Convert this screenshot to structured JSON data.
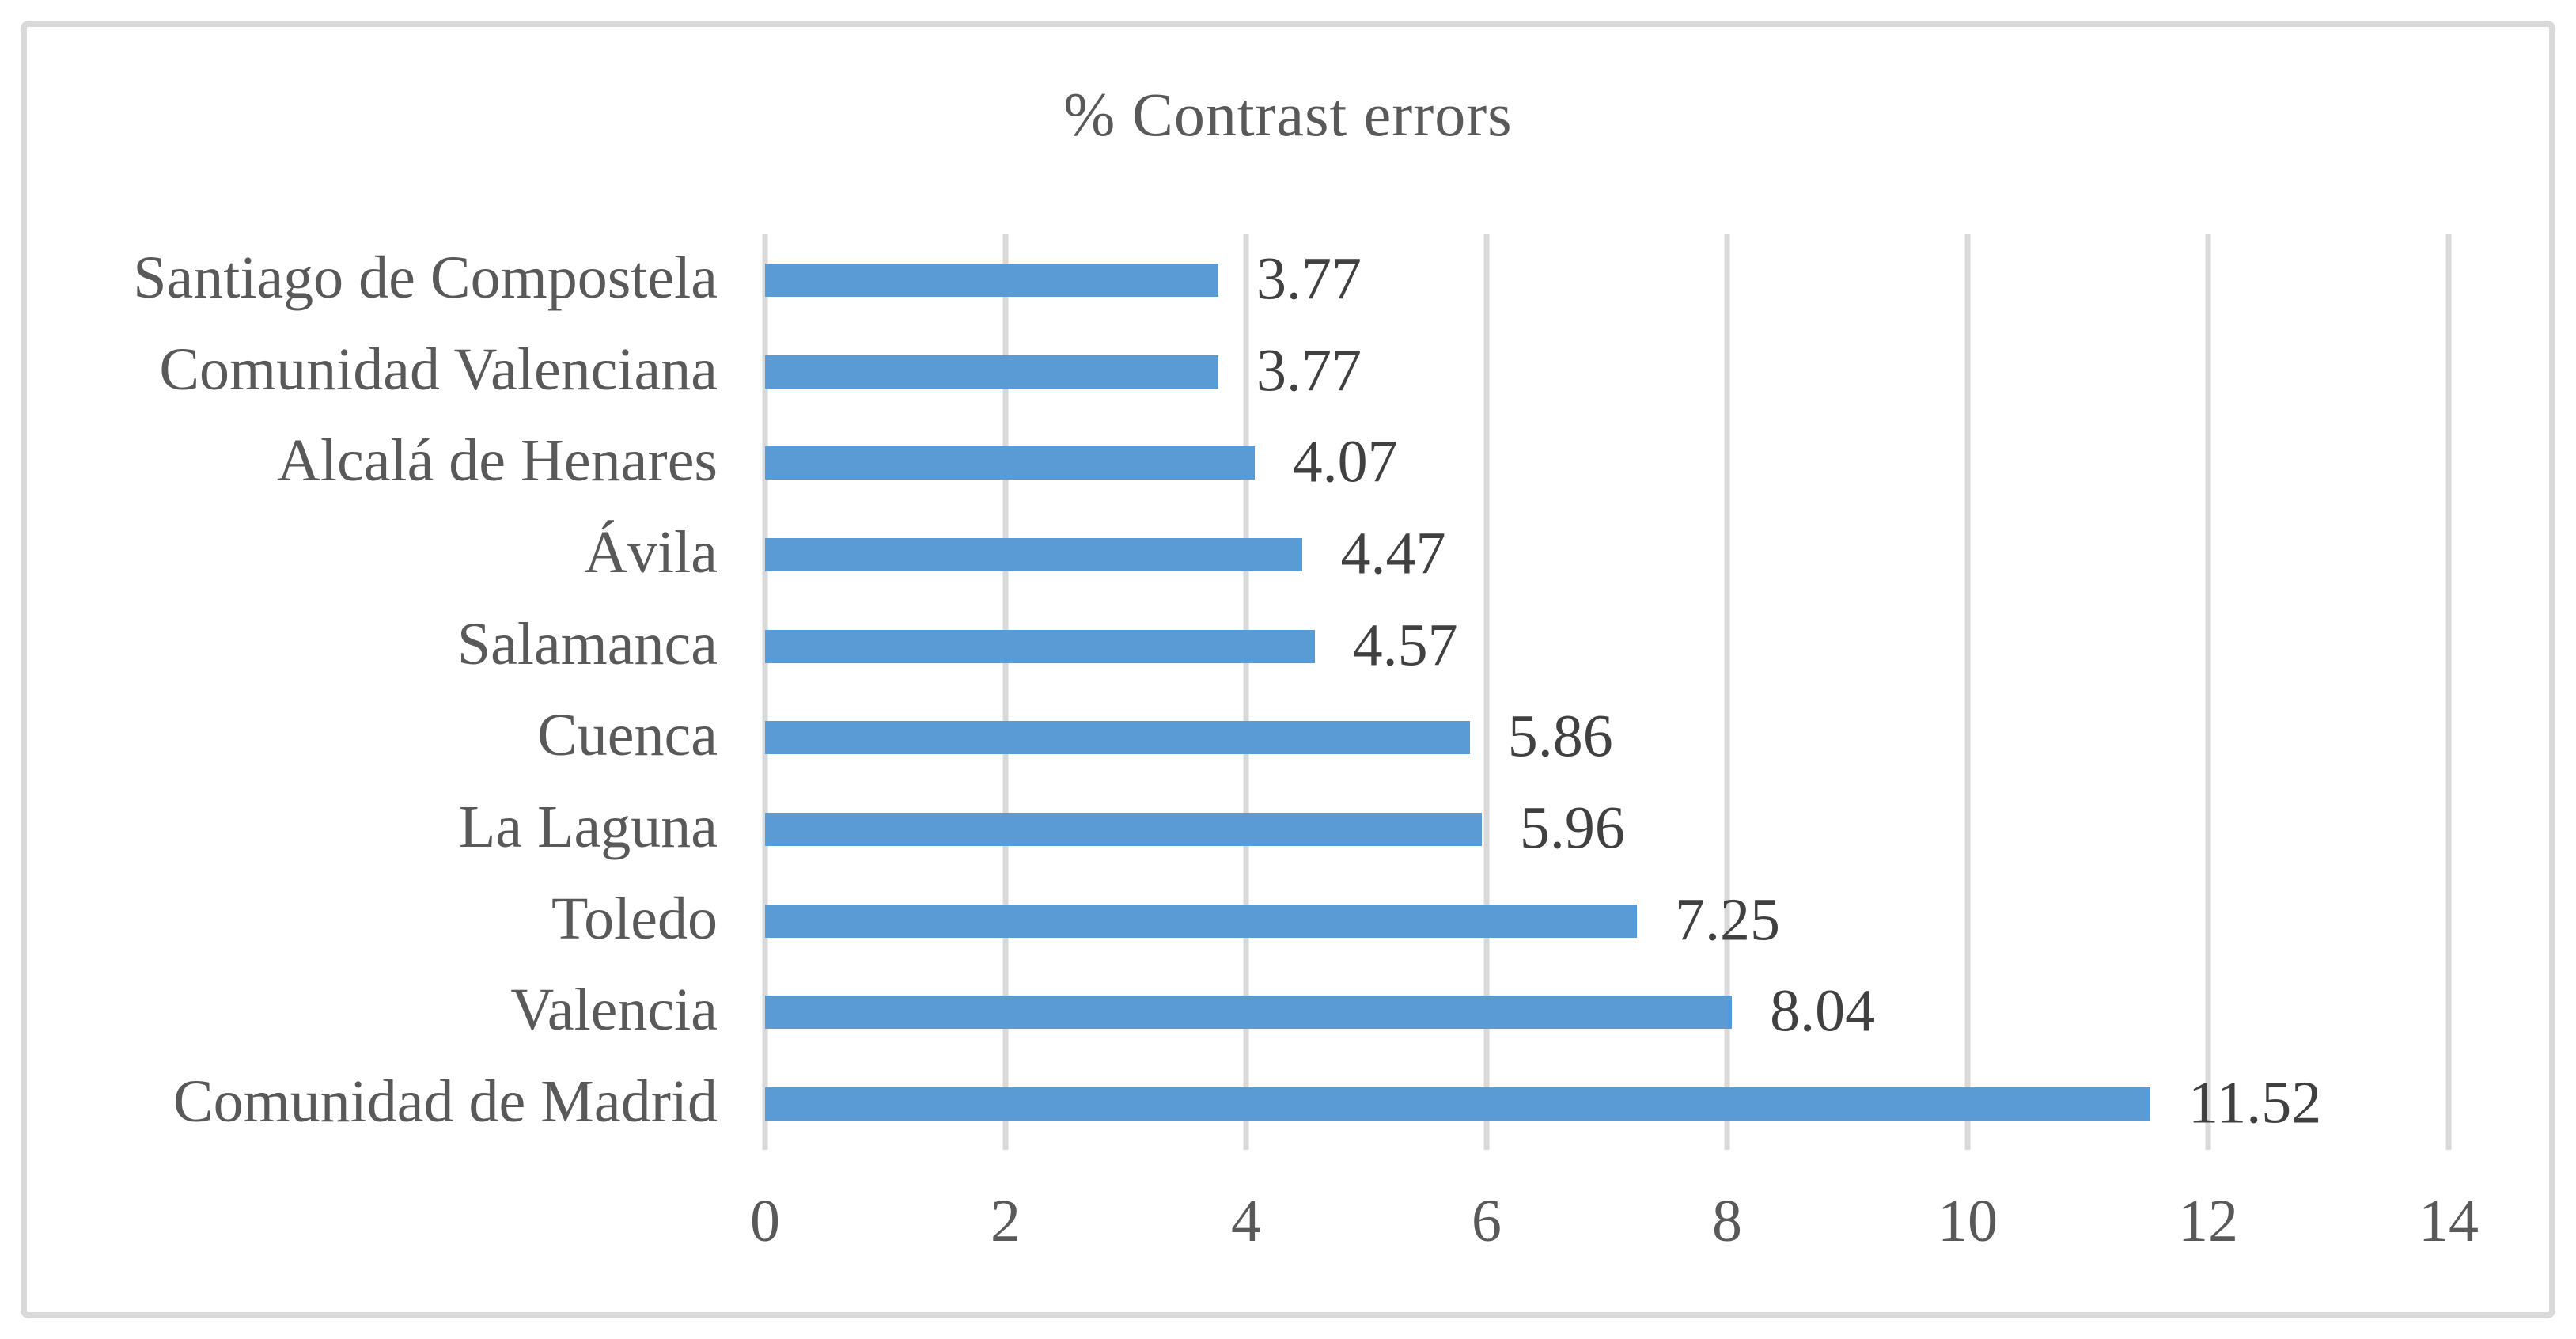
{
  "chart_data": {
    "type": "bar",
    "orientation": "horizontal",
    "title": "% Contrast errors",
    "categories": [
      "Santiago de Compostela",
      "Comunidad Valenciana",
      "Alcalá de Henares",
      "Ávila",
      "Salamanca",
      "Cuenca",
      "La Laguna",
      "Toledo",
      "Valencia",
      "Comunidad de Madrid"
    ],
    "values": [
      3.77,
      3.77,
      4.07,
      4.47,
      4.57,
      5.86,
      5.96,
      7.25,
      8.04,
      11.52
    ],
    "value_labels": [
      "3.77",
      "3.77",
      "4.07",
      "4.47",
      "4.57",
      "5.86",
      "5.96",
      "7.25",
      "8.04",
      "11.52"
    ],
    "x_ticks": [
      0,
      2,
      4,
      6,
      8,
      10,
      12,
      14
    ],
    "xlim": [
      0,
      14
    ],
    "grid": "vertical",
    "legend_position": "none",
    "bar_color": "#5B9BD5",
    "gridline_color": "#D9D9D9",
    "frame_color": "#D9D9D9",
    "title_color": "#595959",
    "category_label_color": "#595959",
    "tick_label_color": "#595959",
    "value_label_color": "#404040"
  }
}
